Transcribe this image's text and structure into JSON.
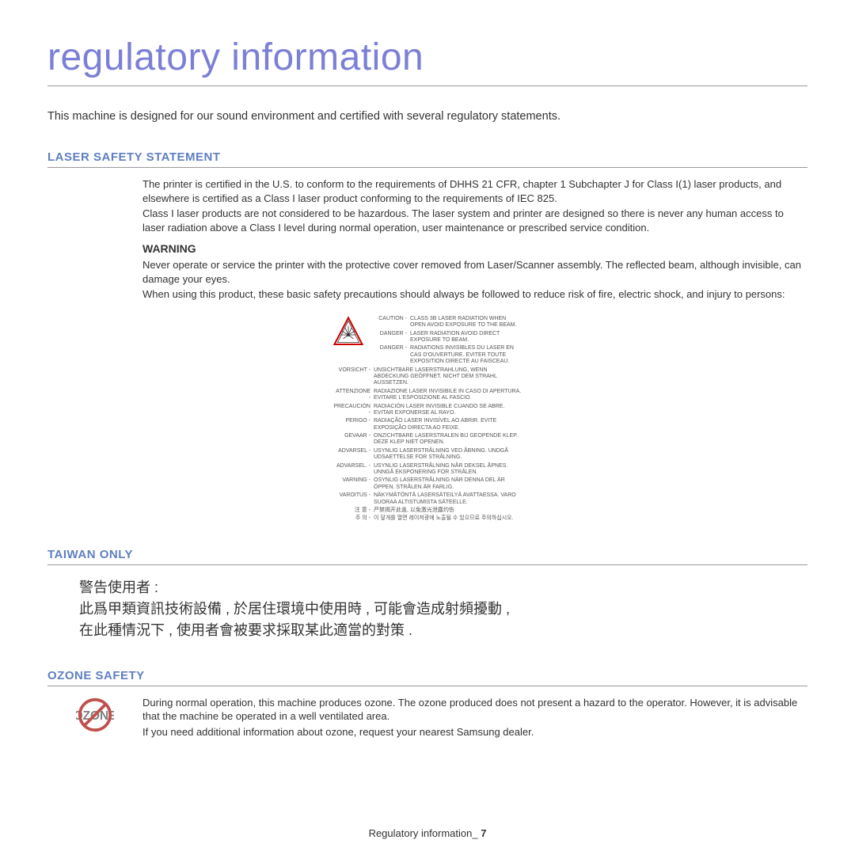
{
  "title": "regulatory information",
  "intro": "This machine is designed for our sound environment and certified with several regulatory statements.",
  "sections": {
    "laser": {
      "heading": "LASER SAFETY STATEMENT",
      "p1": "The printer is certified in the U.S. to conform to the requirements of DHHS 21 CFR, chapter 1 Subchapter J for Class I(1) laser products, and elsewhere is certified as a Class I laser product conforming to the requirements of IEC 825.",
      "p2": "Class I laser products are not considered to be hazardous. The laser system and printer are designed so there is never any human access to laser radiation above a Class I level during normal operation, user maintenance or prescribed service condition.",
      "warning_heading": "WARNING",
      "w1": "Never operate or service the printer with the protective cover removed from Laser/Scanner assembly. The reflected beam, although invisible, can damage your eyes.",
      "w2": "When using this product, these basic safety precautions should always be followed to reduce risk of fire, electric shock, and injury to persons:"
    },
    "taiwan": {
      "heading": "TAIWAN ONLY",
      "l1": "警告使用者 :",
      "l2": "此爲甲類資訊技術設備 , 於居住環境中使用時 , 可能會造成射頻擾動 ,",
      "l3": "在此種情況下 , 使用者會被要求採取某此適當的對策 ."
    },
    "ozone": {
      "heading": "OZONE SAFETY",
      "p1": "During normal operation, this machine produces ozone. The ozone produced does not present a hazard to the operator. However, it is advisable that the machine be operated in a well ventilated area.",
      "p2": "If you need additional information about ozone, request your nearest Samsung dealer."
    }
  },
  "multilang_label": [
    {
      "left": "CAUTION -",
      "right": "CLASS 3B LASER RADIATION WHEN OPEN AVOID EXPOSURE TO THE BEAM."
    },
    {
      "left": "DANGER -",
      "right": "LASER RADIATION AVOID DIRECT EXPOSURE TO BEAM."
    },
    {
      "left": "DANGER -",
      "right": "RADIATIONS INVISIBLES DU LASER EN CAS D'OUVERTURE. EVITER TOUTE EXPOSITION DIRECTE AU FAISCEAU."
    },
    {
      "left": "VORSICHT -",
      "right": "UNSICHTBARE LASERSTRAHLUNG, WENN ABDECKUNG GEÖFFNET. NICHT DEM STRAHL AUSSETZEN."
    },
    {
      "left": "ATTENZIONE -",
      "right": "RADIAZIONE LASER INVISIBILE IN CASO DI APERTURA. EVITARE L'ESPOSIZIONE AL FASCIO."
    },
    {
      "left": "PRECAUCIÓN -",
      "right": "RADIACIÓN LASER INVISIBLE CUANDO SE ABRE. EVITAR EXPONERSE AL RAYO."
    },
    {
      "left": "PERIGO -",
      "right": "RADIAÇÃO LASER INVISÍVEL AO ABRIR. EVITE EXPOSIÇÃO DIRECTA AO FEIXE."
    },
    {
      "left": "GEVAAR -",
      "right": "ONZICHTBARE LASERSTRALEN BIJ GEOPENDE KLEP. DEZE KLEP NIET OPENEN."
    },
    {
      "left": "ADVARSEL -",
      "right": "USYNLIG LASERSTRÅLNING VED ÅBNING. UNDGÅ UDSAETTELSE FOR STRÅLNING."
    },
    {
      "left": "ADVARSEL. -",
      "right": "USYNLIG LASERSTRÅLNING NÅR DEKSEL ÅPNES. UNNGÅ EKSPONERING FOR STRÅLEN."
    },
    {
      "left": "VARNING -",
      "right": "OSYNLIG LASERSTRÅLNING NÄR DENNA DEL ÄR ÖPPEN. STRÅLEN ÄR FARLIG."
    },
    {
      "left": "VAROITUS -",
      "right": "NÄKYMÄTÖNTÄ LASERSÄTEILYÄ AVATTAESSA. VARO SUORAA ALTISTUMISTA SÄTEELLE."
    },
    {
      "left": "注         意 -",
      "right": "严禁揭开此盖, 以免激光泄露灼伤"
    },
    {
      "left": "주         의 -",
      "right": "이 덮개를 열면 레이저광에 노출될 수 있으므로 주의하십시오."
    }
  ],
  "footer": {
    "label": "Regulatory information",
    "sep": "_ ",
    "page": "7"
  },
  "colors": {
    "title": "#7b7fd6",
    "heading": "#5f7fc0",
    "rule": "#999999",
    "text": "#333333",
    "ozone_ring": "#c0504d",
    "ozone_text": "#7f7f7f"
  }
}
